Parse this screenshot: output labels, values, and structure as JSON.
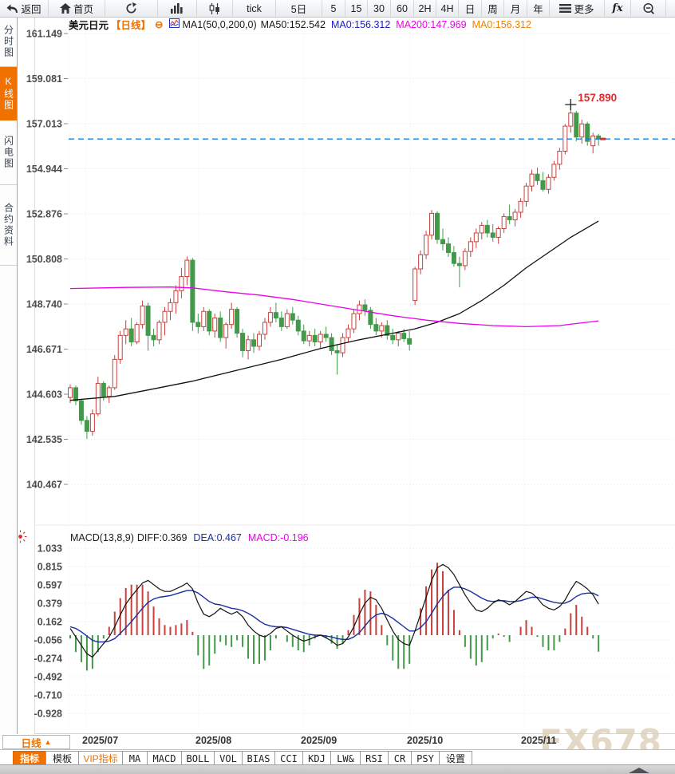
{
  "colors": {
    "up_candle": "#c8403c",
    "down_candle": "#43994a",
    "ma50_line": "#111111",
    "ma200_line": "#ea00ea",
    "diff_line": "#111111",
    "dea_line": "#1a2fa0",
    "current_price_line": "#1c7ce0",
    "accent_orange": "#f07000",
    "annotation_red": "#e02b2b",
    "grid": "#dfe2e8",
    "axis_text": "#4c4c4c"
  },
  "toolbar": {
    "items": [
      {
        "name": "back-button",
        "icon": "back-arrow-icon",
        "label": "返回"
      },
      {
        "name": "home-button",
        "icon": "home-icon",
        "label": "首页"
      },
      {
        "name": "refresh-button",
        "icon": "refresh-icon"
      },
      {
        "name": "mountain-chart-button",
        "icon": "bar-chart-icon"
      },
      {
        "name": "candlestick-button",
        "icon": "candlestick-icon"
      },
      {
        "name": "tick-button",
        "label": "tick"
      },
      {
        "name": "period-5d-button",
        "label": "5日"
      },
      {
        "name": "period-5-button",
        "label": "5"
      },
      {
        "name": "period-15-button",
        "label": "15"
      },
      {
        "name": "period-30-button",
        "label": "30"
      },
      {
        "name": "period-60-button",
        "label": "60"
      },
      {
        "name": "period-2h-button",
        "label": "2H"
      },
      {
        "name": "period-4h-button",
        "label": "4H"
      },
      {
        "name": "period-day-button",
        "label": "日"
      },
      {
        "name": "period-week-button",
        "label": "周"
      },
      {
        "name": "period-month-button",
        "label": "月"
      },
      {
        "name": "period-year-button",
        "label": "年"
      },
      {
        "name": "more-button",
        "icon": "menu-icon",
        "label": "更多"
      },
      {
        "name": "fx-button",
        "label": "fx"
      },
      {
        "name": "zoom-out-button",
        "icon": "zoom-out-icon"
      },
      {
        "name": "zoom-in-button",
        "icon": "zoom-in-icon"
      }
    ]
  },
  "sidebar": {
    "items": [
      {
        "name": "sidebar-item-time-chart",
        "label": "分时图",
        "active": false
      },
      {
        "name": "sidebar-item-kline-chart",
        "label": "K线图",
        "active": true
      },
      {
        "name": "sidebar-item-lightning-chart",
        "label": "闪电图",
        "active": false
      },
      {
        "name": "sidebar-item-contract-info",
        "label": "合约资料",
        "active": false
      }
    ]
  },
  "chart_header": {
    "symbol": "美元日元",
    "period_tag": "【日线】",
    "collapse_icon": "⊖",
    "ma_settings": "MA1(50,0,200,0)",
    "ma50": "MA50:152.542",
    "ma0_blue": "MA0:156.312",
    "ma200": "MA200:147.969",
    "ma0_orange": "MA0:156.312"
  },
  "macd_header": {
    "title": "MACD(13,8,9)",
    "diff": "DIFF:0.369",
    "dea": "DEA:0.467",
    "macd": "MACD:-0.196"
  },
  "bottom_bar": {
    "period_label": "日线",
    "period_arrow": "▲",
    "tabs": [
      {
        "label": "指标",
        "cn": true,
        "active": true
      },
      {
        "label": "模板",
        "cn": true
      },
      {
        "label": "VIP指标",
        "cn": true,
        "vip": true
      },
      {
        "label": "MA"
      },
      {
        "label": "MACD"
      },
      {
        "label": "BOLL"
      },
      {
        "label": "VOL"
      },
      {
        "label": "BIAS"
      },
      {
        "label": "CCI"
      },
      {
        "label": "KDJ"
      },
      {
        "label": "LW&"
      },
      {
        "label": "RSI"
      },
      {
        "label": "CR"
      },
      {
        "label": "PSY"
      },
      {
        "label": "设置",
        "cn": true
      }
    ]
  },
  "watermark": "FX678",
  "chart_data": {
    "type": "candlestick",
    "title": "美元日元 日线 (USD/JPY Daily) with MA50/MA200 and MACD(13,8,9)",
    "price_axis_ticks": [
      "161.149",
      "159.081",
      "157.013",
      "154.944",
      "152.876",
      "150.808",
      "148.740",
      "146.671",
      "144.603",
      "142.535",
      "140.467"
    ],
    "macd_axis_ticks": [
      "1.033",
      "0.815",
      "0.597",
      "0.379",
      "0.162",
      "-0.056",
      "-0.274",
      "-0.492",
      "-0.710",
      "-0.928"
    ],
    "x_labels": [
      "2025/07",
      "2025/08",
      "2025/09",
      "2025/10",
      "2025/11"
    ],
    "current_price": 156.312,
    "peak_annotation": "157.890",
    "peak_price": 157.89,
    "peak_index": 90,
    "candles": [
      [
        144.45,
        145.05,
        144.2,
        144.9
      ],
      [
        144.9,
        145.0,
        144.1,
        144.3
      ],
      [
        144.3,
        144.4,
        143.2,
        143.4
      ],
      [
        143.4,
        143.6,
        142.55,
        142.9
      ],
      [
        142.9,
        143.9,
        142.7,
        143.7
      ],
      [
        143.7,
        145.4,
        143.6,
        145.1
      ],
      [
        145.1,
        145.2,
        144.3,
        144.5
      ],
      [
        144.5,
        145.0,
        144.2,
        144.9
      ],
      [
        144.9,
        146.4,
        144.8,
        146.2
      ],
      [
        146.2,
        147.5,
        146.0,
        147.3
      ],
      [
        147.3,
        148.0,
        146.9,
        147.6
      ],
      [
        147.6,
        148.1,
        146.8,
        147.0
      ],
      [
        147.0,
        147.9,
        146.9,
        147.8
      ],
      [
        147.8,
        148.9,
        147.6,
        148.65
      ],
      [
        148.65,
        148.8,
        146.6,
        147.3
      ],
      [
        147.3,
        147.6,
        146.8,
        147.1
      ],
      [
        147.1,
        148.0,
        146.9,
        147.9
      ],
      [
        147.9,
        148.6,
        147.3,
        148.4
      ],
      [
        148.4,
        149.0,
        148.0,
        148.8
      ],
      [
        148.8,
        149.6,
        148.3,
        149.35
      ],
      [
        149.35,
        150.4,
        149.0,
        150.0
      ],
      [
        150.0,
        150.92,
        149.6,
        150.75
      ],
      [
        150.75,
        150.85,
        147.5,
        147.9
      ],
      [
        147.9,
        148.3,
        147.4,
        147.7
      ],
      [
        147.7,
        148.6,
        147.5,
        148.4
      ],
      [
        148.4,
        148.5,
        147.3,
        147.5
      ],
      [
        147.5,
        148.3,
        147.2,
        148.1
      ],
      [
        148.1,
        148.4,
        147.0,
        147.2
      ],
      [
        147.2,
        147.9,
        146.7,
        147.8
      ],
      [
        147.8,
        148.8,
        147.6,
        148.5
      ],
      [
        148.5,
        148.6,
        147.2,
        147.4
      ],
      [
        147.4,
        147.6,
        146.3,
        146.6
      ],
      [
        146.6,
        147.3,
        146.2,
        147.1
      ],
      [
        147.1,
        147.4,
        146.5,
        146.8
      ],
      [
        146.8,
        147.5,
        146.6,
        147.35
      ],
      [
        147.35,
        148.1,
        147.1,
        147.9
      ],
      [
        147.9,
        148.6,
        147.7,
        148.35
      ],
      [
        148.35,
        148.8,
        147.9,
        148.1
      ],
      [
        148.1,
        148.4,
        147.5,
        147.7
      ],
      [
        147.7,
        148.5,
        147.6,
        148.3
      ],
      [
        148.3,
        148.6,
        147.8,
        148.0
      ],
      [
        148.0,
        148.2,
        147.3,
        147.5
      ],
      [
        147.5,
        147.8,
        146.9,
        147.05
      ],
      [
        147.05,
        147.5,
        146.8,
        147.3
      ],
      [
        147.3,
        147.6,
        146.8,
        147.0
      ],
      [
        147.0,
        147.5,
        146.7,
        147.35
      ],
      [
        147.35,
        147.7,
        147.0,
        147.2
      ],
      [
        147.2,
        147.4,
        146.4,
        146.6
      ],
      [
        146.6,
        146.9,
        145.5,
        146.5
      ],
      [
        146.5,
        147.4,
        146.3,
        147.2
      ],
      [
        147.2,
        147.8,
        147.0,
        147.6
      ],
      [
        147.6,
        148.5,
        147.4,
        148.3
      ],
      [
        148.3,
        148.9,
        148.0,
        148.7
      ],
      [
        148.7,
        148.95,
        148.2,
        148.45
      ],
      [
        148.45,
        148.6,
        147.6,
        147.8
      ],
      [
        147.8,
        148.1,
        147.3,
        147.5
      ],
      [
        147.5,
        147.9,
        147.2,
        147.75
      ],
      [
        147.75,
        148.0,
        147.1,
        147.3
      ],
      [
        147.3,
        147.6,
        146.9,
        147.1
      ],
      [
        147.1,
        147.5,
        146.8,
        147.4
      ],
      [
        147.4,
        147.6,
        147.0,
        147.15
      ],
      [
        147.15,
        147.5,
        146.6,
        146.9
      ],
      [
        148.9,
        150.45,
        148.7,
        150.35
      ],
      [
        150.35,
        151.2,
        150.1,
        151.0
      ],
      [
        151.0,
        152.1,
        150.8,
        151.9
      ],
      [
        151.9,
        153.05,
        151.7,
        152.9
      ],
      [
        152.9,
        153.0,
        151.5,
        151.7
      ],
      [
        151.7,
        152.2,
        151.2,
        151.5
      ],
      [
        151.5,
        151.8,
        150.9,
        151.1
      ],
      [
        151.1,
        151.4,
        150.45,
        150.6
      ],
      [
        150.6,
        150.9,
        149.5,
        150.5
      ],
      [
        150.5,
        151.3,
        150.3,
        151.15
      ],
      [
        151.15,
        151.8,
        150.9,
        151.6
      ],
      [
        151.6,
        152.2,
        151.3,
        152.0
      ],
      [
        152.0,
        152.5,
        151.7,
        152.35
      ],
      [
        152.35,
        152.6,
        151.8,
        152.0
      ],
      [
        152.0,
        152.4,
        151.6,
        151.8
      ],
      [
        151.8,
        152.3,
        151.5,
        152.2
      ],
      [
        152.2,
        152.9,
        152.0,
        152.75
      ],
      [
        152.75,
        153.3,
        152.4,
        152.6
      ],
      [
        152.6,
        153.1,
        152.3,
        152.95
      ],
      [
        152.95,
        153.6,
        152.7,
        153.45
      ],
      [
        153.45,
        154.3,
        153.2,
        154.15
      ],
      [
        154.15,
        154.9,
        153.9,
        154.7
      ],
      [
        154.7,
        155.0,
        154.2,
        154.4
      ],
      [
        154.4,
        154.8,
        153.9,
        154.0
      ],
      [
        154.0,
        154.7,
        153.8,
        154.55
      ],
      [
        154.55,
        155.3,
        154.4,
        155.15
      ],
      [
        155.15,
        155.9,
        154.9,
        155.75
      ],
      [
        155.75,
        157.0,
        155.6,
        156.9
      ],
      [
        156.9,
        157.89,
        156.6,
        157.5
      ],
      [
        157.5,
        157.6,
        156.2,
        156.4
      ],
      [
        156.4,
        157.2,
        156.1,
        157.0
      ],
      [
        157.0,
        157.1,
        156.0,
        156.2
      ],
      [
        156.0,
        156.6,
        155.65,
        156.45
      ],
      [
        156.45,
        156.55,
        156.0,
        156.31
      ]
    ],
    "ma50_points": [
      [
        0,
        144.32
      ],
      [
        8,
        144.5
      ],
      [
        15,
        144.85
      ],
      [
        22,
        145.2
      ],
      [
        30,
        145.7
      ],
      [
        38,
        146.2
      ],
      [
        45,
        146.7
      ],
      [
        52,
        147.1
      ],
      [
        58,
        147.4
      ],
      [
        62,
        147.6
      ],
      [
        66,
        147.9
      ],
      [
        70,
        148.3
      ],
      [
        74,
        148.9
      ],
      [
        78,
        149.6
      ],
      [
        82,
        150.4
      ],
      [
        86,
        151.1
      ],
      [
        90,
        151.8
      ],
      [
        95,
        152.542
      ]
    ],
    "ma200_points": [
      [
        0,
        149.45
      ],
      [
        10,
        149.5
      ],
      [
        18,
        149.52
      ],
      [
        22,
        149.48
      ],
      [
        28,
        149.3
      ],
      [
        34,
        149.15
      ],
      [
        40,
        148.95
      ],
      [
        46,
        148.7
      ],
      [
        52,
        148.45
      ],
      [
        58,
        148.2
      ],
      [
        64,
        148.0
      ],
      [
        70,
        147.85
      ],
      [
        76,
        147.75
      ],
      [
        82,
        147.7
      ],
      [
        88,
        147.75
      ],
      [
        95,
        147.969
      ]
    ],
    "macd": {
      "hist_multiplier": 2,
      "diff": [
        0.08,
        -0.02,
        -0.12,
        -0.22,
        -0.26,
        -0.18,
        -0.1,
        -0.02,
        0.1,
        0.24,
        0.37,
        0.46,
        0.54,
        0.62,
        0.65,
        0.6,
        0.55,
        0.52,
        0.52,
        0.55,
        0.58,
        0.62,
        0.55,
        0.38,
        0.25,
        0.22,
        0.26,
        0.32,
        0.28,
        0.25,
        0.28,
        0.22,
        0.12,
        0.05,
        0.0,
        -0.02,
        0.02,
        0.08,
        0.1,
        0.05,
        0.0,
        -0.04,
        -0.07,
        -0.05,
        -0.02,
        0.0,
        -0.03,
        -0.07,
        -0.12,
        -0.1,
        -0.02,
        0.1,
        0.25,
        0.38,
        0.45,
        0.42,
        0.32,
        0.18,
        0.05,
        -0.05,
        -0.1,
        -0.12,
        0.05,
        0.25,
        0.45,
        0.65,
        0.8,
        0.84,
        0.8,
        0.72,
        0.6,
        0.48,
        0.38,
        0.3,
        0.28,
        0.32,
        0.38,
        0.42,
        0.4,
        0.36,
        0.4,
        0.46,
        0.52,
        0.5,
        0.44,
        0.36,
        0.32,
        0.3,
        0.34,
        0.42,
        0.54,
        0.64,
        0.6,
        0.55,
        0.48,
        0.369
      ],
      "dea": [
        0.1,
        0.08,
        0.04,
        -0.01,
        -0.06,
        -0.08,
        -0.08,
        -0.07,
        -0.04,
        0.02,
        0.09,
        0.16,
        0.24,
        0.32,
        0.39,
        0.43,
        0.45,
        0.46,
        0.47,
        0.49,
        0.51,
        0.53,
        0.53,
        0.5,
        0.45,
        0.4,
        0.37,
        0.36,
        0.34,
        0.32,
        0.31,
        0.29,
        0.26,
        0.22,
        0.17,
        0.13,
        0.11,
        0.1,
        0.1,
        0.09,
        0.07,
        0.05,
        0.03,
        0.01,
        0.0,
        0.0,
        -0.01,
        -0.02,
        -0.04,
        -0.05,
        -0.05,
        -0.02,
        0.03,
        0.11,
        0.19,
        0.24,
        0.26,
        0.24,
        0.2,
        0.15,
        0.1,
        0.05,
        0.05,
        0.09,
        0.16,
        0.26,
        0.37,
        0.46,
        0.53,
        0.57,
        0.57,
        0.55,
        0.52,
        0.48,
        0.44,
        0.41,
        0.4,
        0.41,
        0.41,
        0.4,
        0.4,
        0.41,
        0.43,
        0.45,
        0.45,
        0.43,
        0.41,
        0.39,
        0.38,
        0.38,
        0.41,
        0.46,
        0.49,
        0.5,
        0.5,
        0.467
      ]
    }
  }
}
